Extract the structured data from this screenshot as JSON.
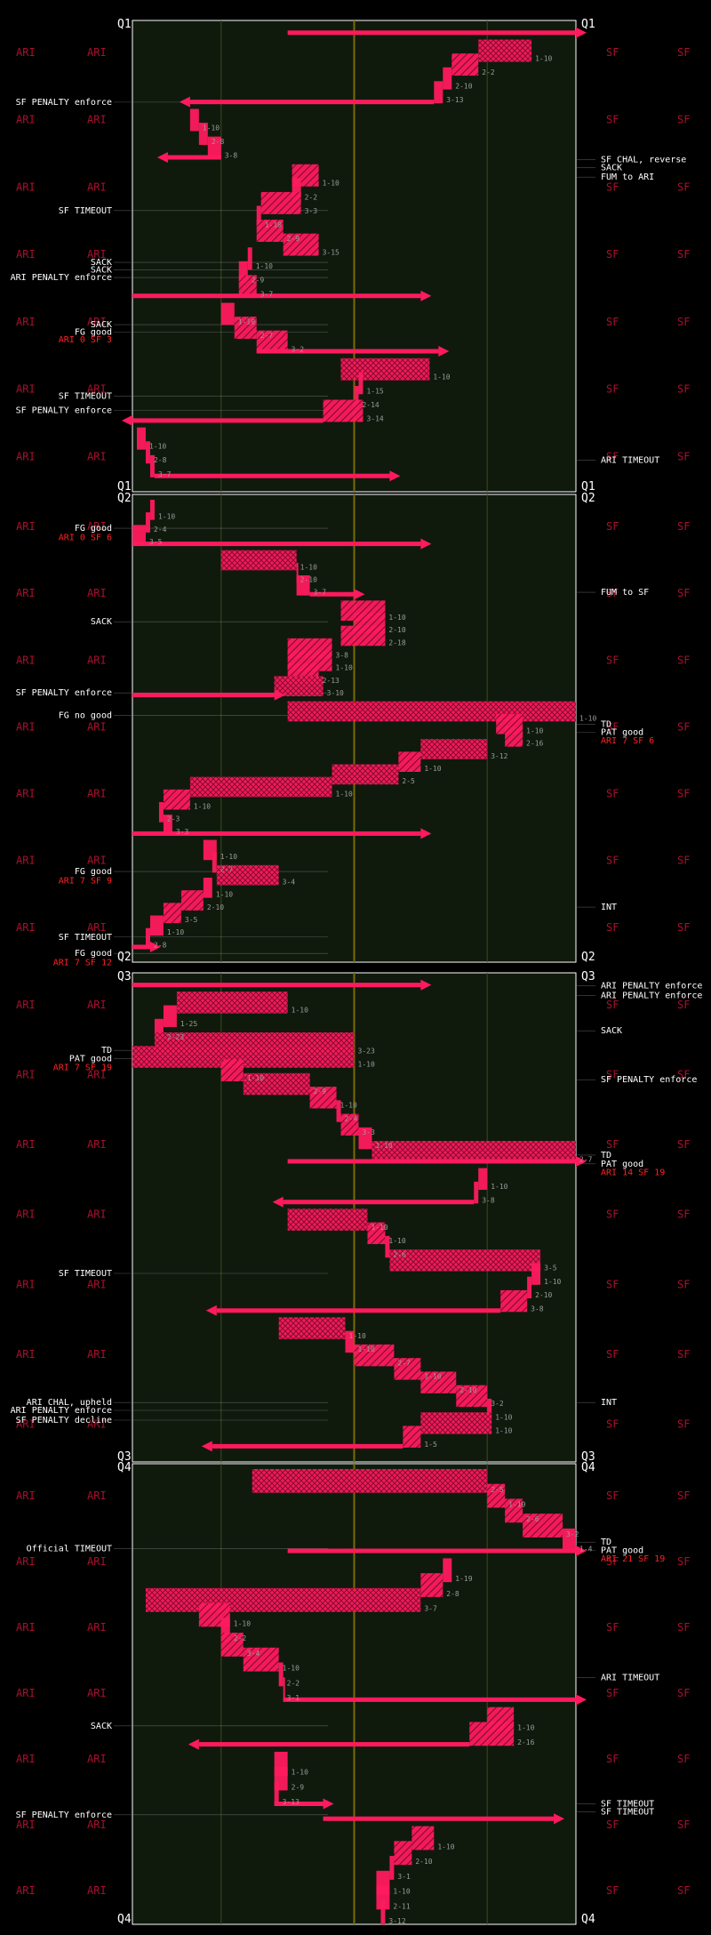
{
  "chart_data": {
    "type": "football drive chart",
    "teams": {
      "left": "ARI",
      "right": "SF"
    },
    "colors": {
      "background": "#000000",
      "field": "#0f1a0d",
      "accent": "#ff1a5e",
      "midfield": "#7a6a00",
      "yardline": "#3f4a1e",
      "text": "#ffffff",
      "score": "#ff2222",
      "team_label": "#a8102e"
    },
    "x_axis": {
      "unit": "yards from ARI goal line",
      "range": [
        0,
        100
      ],
      "gridlines": [
        20,
        50,
        80
      ]
    },
    "quarters": [
      {
        "label": "Q1",
        "plays": [
          {
            "from": 35,
            "to": 100
          },
          {
            "from": 90,
            "to": 78,
            "label": "1-10"
          },
          {
            "from": 78,
            "to": 72,
            "label": "2-2"
          },
          {
            "from": 72,
            "to": 70,
            "label": "2-10"
          },
          {
            "from": 70,
            "to": 68,
            "label": "3-13"
          },
          {
            "from": 68,
            "to": 13
          },
          {
            "from": 13,
            "to": 15,
            "label": "1-10"
          },
          {
            "from": 15,
            "to": 17,
            "label": "2-8"
          },
          {
            "from": 17,
            "to": 20,
            "label": "3-8"
          },
          {
            "from": 20,
            "to": 8
          },
          {
            "from": 36,
            "to": 42,
            "label": "1-10"
          },
          {
            "from": 38,
            "to": 36,
            "label": "2-2"
          },
          {
            "from": 29,
            "to": 38,
            "label": "3-3"
          },
          {
            "from": 29,
            "to": 28,
            "label": "1-10"
          },
          {
            "from": 28,
            "to": 34,
            "label": "2-9"
          },
          {
            "from": 34,
            "to": 42,
            "label": "3-15"
          },
          {
            "from": 27,
            "to": 26,
            "label": "1-10"
          },
          {
            "from": 26,
            "to": 24,
            "label": "2-9"
          },
          {
            "from": 24,
            "to": 28,
            "label": "3-7"
          },
          {
            "from": 0,
            "to": 65
          },
          {
            "from": 20,
            "to": 23,
            "label": "1-10"
          },
          {
            "from": 23,
            "to": 28,
            "label": "2-7"
          },
          {
            "from": 28,
            "to": 35,
            "label": "3-2"
          },
          {
            "from": 28,
            "to": 69
          },
          {
            "from": 47,
            "to": 67,
            "label": "1-10"
          },
          {
            "from": 52,
            "to": 51,
            "label": "1-15"
          },
          {
            "from": 51,
            "to": 50,
            "label": "2-14"
          },
          {
            "from": 43,
            "to": 52,
            "label": "3-14"
          },
          {
            "from": 43,
            "to": 0
          },
          {
            "from": 1,
            "to": 3,
            "label": "1-10"
          },
          {
            "from": 3,
            "to": 4,
            "label": "2-8"
          },
          {
            "from": 4,
            "to": 5,
            "label": "3-7"
          },
          {
            "from": 5,
            "to": 58
          }
        ],
        "events": [
          {
            "text": "SF PENALTY enforce",
            "side": "left",
            "y": 0.179
          },
          {
            "text": "SF TIMEOUT",
            "side": "left",
            "y": 0.409
          },
          {
            "text": "SACK",
            "side": "left",
            "y": 0.519
          },
          {
            "text": "SACK",
            "side": "left",
            "y": 0.535
          },
          {
            "text": "ARI PENALTY enforce",
            "side": "left",
            "y": 0.551
          },
          {
            "text": "SACK",
            "side": "left",
            "y": 0.651
          },
          {
            "text": "FG good",
            "side": "left",
            "y": 0.667
          },
          {
            "text": "ARI 0 SF 3",
            "side": "left",
            "y": 0.683,
            "score": true
          },
          {
            "text": "SF TIMEOUT",
            "side": "left",
            "y": 0.803
          },
          {
            "text": "SF PENALTY enforce",
            "side": "left",
            "y": 0.833
          },
          {
            "text": "SF CHAL, reverse",
            "side": "right",
            "y": 0.301
          },
          {
            "text": "SACK",
            "side": "right",
            "y": 0.318
          },
          {
            "text": "FUM to ARI",
            "side": "right",
            "y": 0.338
          },
          {
            "text": "ARI TIMEOUT",
            "side": "right",
            "y": 0.939
          }
        ]
      },
      {
        "label": "Q2",
        "plays": [
          {
            "from": 5,
            "to": 4,
            "label": "1-10"
          },
          {
            "from": 4,
            "to": 3,
            "label": "2-4"
          },
          {
            "from": 3,
            "to": 0,
            "label": "3-5"
          },
          {
            "from": 0,
            "to": 65
          },
          {
            "from": 20,
            "to": 37,
            "label": "1-10"
          },
          {
            "from": 37,
            "to": 37,
            "label": "2-10"
          },
          {
            "from": 37,
            "to": 40,
            "label": "3-7"
          },
          {
            "from": 40,
            "to": 50
          },
          {
            "from": 47,
            "to": 57,
            "label": "1-10"
          },
          {
            "from": 50,
            "to": 57,
            "label": "2-10"
          },
          {
            "from": 47,
            "to": 57,
            "label": "2-18"
          },
          {
            "from": 35,
            "to": 45,
            "label": "3-8"
          },
          {
            "from": 35,
            "to": 45,
            "label": "1-10"
          },
          {
            "from": 35,
            "to": 42,
            "label": "2-13"
          },
          {
            "from": 32,
            "to": 43,
            "label": "3-10"
          },
          {
            "from": 0,
            "to": 32
          },
          {
            "from": 35,
            "to": 100,
            "label": "1-10"
          },
          {
            "from": 82,
            "to": 88,
            "label": "1-10"
          },
          {
            "from": 84,
            "to": 88,
            "label": "2-16"
          },
          {
            "from": 65,
            "to": 80,
            "label": "3-12"
          },
          {
            "from": 60,
            "to": 65,
            "label": "1-10"
          },
          {
            "from": 45,
            "to": 60,
            "label": "2-5"
          },
          {
            "from": 13,
            "to": 45,
            "label": "1-10"
          },
          {
            "from": 7,
            "to": 13,
            "label": "1-10"
          },
          {
            "from": 6,
            "to": 7,
            "label": "2-3"
          },
          {
            "from": 7,
            "to": 9,
            "label": "3-3"
          },
          {
            "from": 0,
            "to": 65
          },
          {
            "from": 16,
            "to": 19,
            "label": "1-10"
          },
          {
            "from": 18,
            "to": 19,
            "label": "2-7"
          },
          {
            "from": 19,
            "to": 33,
            "label": "3-4"
          },
          {
            "from": 16,
            "to": 18,
            "label": "1-10"
          },
          {
            "from": 11,
            "to": 16,
            "label": "2-10"
          },
          {
            "from": 7,
            "to": 11,
            "label": "3-5"
          },
          {
            "from": 4,
            "to": 7,
            "label": "1-10"
          },
          {
            "from": 3,
            "to": 4,
            "label": "2-8"
          },
          {
            "from": 0,
            "to": 4
          }
        ],
        "events": [
          {
            "text": "FG good",
            "side": "left",
            "y": 0.078
          },
          {
            "text": "ARI 0 SF 6",
            "side": "left",
            "y": 0.098,
            "score": true
          },
          {
            "text": "SACK",
            "side": "left",
            "y": 0.278
          },
          {
            "text": "SF PENALTY enforce",
            "side": "left",
            "y": 0.43
          },
          {
            "text": "FG no good",
            "side": "left",
            "y": 0.478
          },
          {
            "text": "FG good",
            "side": "left",
            "y": 0.812
          },
          {
            "text": "ARI 7 SF 9",
            "side": "left",
            "y": 0.832,
            "score": true
          },
          {
            "text": "SF TIMEOUT",
            "side": "left",
            "y": 0.952
          },
          {
            "text": "FG good",
            "side": "left",
            "y": 0.987
          },
          {
            "text": "ARI 7 SF 12",
            "side": "left",
            "y": 1.007,
            "score": true
          },
          {
            "text": "FUM to SF",
            "side": "right",
            "y": 0.215
          },
          {
            "text": "TD",
            "side": "right",
            "y": 0.497
          },
          {
            "text": "PAT good",
            "side": "right",
            "y": 0.514
          },
          {
            "text": "ARI 7 SF 6",
            "side": "right",
            "y": 0.532,
            "score": true
          },
          {
            "text": "INT",
            "side": "right",
            "y": 0.888
          }
        ]
      },
      {
        "label": "Q3",
        "plays": [
          {
            "from": 0,
            "to": 65
          },
          {
            "from": 10,
            "to": 35,
            "label": "1-10"
          },
          {
            "from": 7,
            "to": 10,
            "label": "1-25"
          },
          {
            "from": 5,
            "to": 7,
            "label": "2-23"
          },
          {
            "from": 5,
            "to": 50,
            "label": "3-23"
          },
          {
            "from": 50,
            "to": 0,
            "label": "1-10"
          },
          {
            "from": 20,
            "to": 25,
            "label": "1-10"
          },
          {
            "from": 25,
            "to": 40,
            "label": "2-9"
          },
          {
            "from": 40,
            "to": 46,
            "label": "1-10"
          },
          {
            "from": 46,
            "to": 47,
            "label": "2-4"
          },
          {
            "from": 47,
            "to": 51,
            "label": "3-3"
          },
          {
            "from": 51,
            "to": 54,
            "label": "1-10"
          },
          {
            "from": 54,
            "to": 100,
            "label": "2-7"
          },
          {
            "from": 35,
            "to": 100
          },
          {
            "from": 80,
            "to": 78,
            "label": "1-10"
          },
          {
            "from": 78,
            "to": 77,
            "label": "3-8"
          },
          {
            "from": 77,
            "to": 34
          },
          {
            "from": 35,
            "to": 53,
            "label": "1-10"
          },
          {
            "from": 53,
            "to": 57,
            "label": "1-10"
          },
          {
            "from": 57,
            "to": 58,
            "label": "2-6"
          },
          {
            "from": 58,
            "to": 92,
            "label": "3-5"
          },
          {
            "from": 92,
            "to": 90,
            "label": "1-10"
          },
          {
            "from": 90,
            "to": 89,
            "label": "2-10"
          },
          {
            "from": 89,
            "to": 83,
            "label": "3-8"
          },
          {
            "from": 83,
            "to": 19
          },
          {
            "from": 33,
            "to": 48,
            "label": "1-10"
          },
          {
            "from": 48,
            "to": 50,
            "label": "1-10"
          },
          {
            "from": 50,
            "to": 59,
            "label": "2-7"
          },
          {
            "from": 59,
            "to": 65,
            "label": "1-10"
          },
          {
            "from": 65,
            "to": 73,
            "label": "2-10"
          },
          {
            "from": 73,
            "to": 80,
            "label": "3-2"
          },
          {
            "from": 80,
            "to": 81,
            "label": "1-10"
          },
          {
            "from": 81,
            "to": 65,
            "label": "1-10"
          },
          {
            "from": 65,
            "to": 61,
            "label": "1-5"
          },
          {
            "from": 61,
            "to": 18
          }
        ],
        "events": [
          {
            "text": "TD",
            "side": "left",
            "y": 0.164
          },
          {
            "text": "PAT good",
            "side": "left",
            "y": 0.181
          },
          {
            "text": "ARI 7 SF 19",
            "side": "left",
            "y": 0.199,
            "score": true
          },
          {
            "text": "SF TIMEOUT",
            "side": "left",
            "y": 0.62
          },
          {
            "text": "ARI CHAL, upheld",
            "side": "left",
            "y": 0.884
          },
          {
            "text": "ARI PENALTY enforce",
            "side": "left",
            "y": 0.9
          },
          {
            "text": "SF PENALTY decline",
            "side": "left",
            "y": 0.92
          },
          {
            "text": "ARI PENALTY enforce",
            "side": "right",
            "y": 0.032
          },
          {
            "text": "ARI PENALTY enforce",
            "side": "right",
            "y": 0.052
          },
          {
            "text": "SACK",
            "side": "right",
            "y": 0.124
          },
          {
            "text": "SF PENALTY enforce",
            "side": "right",
            "y": 0.224
          },
          {
            "text": "TD",
            "side": "right",
            "y": 0.378
          },
          {
            "text": "PAT good",
            "side": "right",
            "y": 0.396
          },
          {
            "text": "ARI 14 SF 19",
            "side": "right",
            "y": 0.414,
            "score": true
          },
          {
            "text": "INT",
            "side": "right",
            "y": 0.884
          }
        ]
      },
      {
        "label": "Q4",
        "plays": [
          {
            "from": 27,
            "to": 80,
            "label": "2-5"
          },
          {
            "from": 80,
            "to": 84,
            "label": "1-10"
          },
          {
            "from": 84,
            "to": 88,
            "label": "2-6"
          },
          {
            "from": 88,
            "to": 97,
            "label": "3-2"
          },
          {
            "from": 97,
            "to": 100,
            "label": "1-4"
          },
          {
            "from": 35,
            "to": 100
          },
          {
            "from": 72,
            "to": 70,
            "label": "1-19"
          },
          {
            "from": 70,
            "to": 65,
            "label": "2-8"
          },
          {
            "from": 65,
            "to": 3,
            "label": "3-7"
          },
          {
            "from": 15,
            "to": 22,
            "label": "1-10"
          },
          {
            "from": 20,
            "to": 22,
            "label": "2-2"
          },
          {
            "from": 20,
            "to": 25,
            "label": "3-4"
          },
          {
            "from": 25,
            "to": 33,
            "label": "1-10"
          },
          {
            "from": 33,
            "to": 34,
            "label": "2-2"
          },
          {
            "from": 34,
            "to": 34,
            "label": "3-1"
          },
          {
            "from": 34,
            "to": 100
          },
          {
            "from": 80,
            "to": 86,
            "label": "1-10"
          },
          {
            "from": 76,
            "to": 86,
            "label": "2-16"
          },
          {
            "from": 76,
            "to": 15
          },
          {
            "from": 32,
            "to": 35,
            "label": "1-10"
          },
          {
            "from": 35,
            "to": 32,
            "label": "2-9"
          },
          {
            "from": 32,
            "to": 33,
            "label": "3-13"
          },
          {
            "from": 32,
            "to": 43
          },
          {
            "from": 43,
            "to": 95
          },
          {
            "from": 63,
            "to": 68,
            "label": "1-10"
          },
          {
            "from": 59,
            "to": 63,
            "label": "2-10"
          },
          {
            "from": 58,
            "to": 59,
            "label": "3-1"
          },
          {
            "from": 58,
            "to": 55,
            "label": "1-10"
          },
          {
            "from": 55,
            "to": 58,
            "label": "2-11"
          },
          {
            "from": 56,
            "to": 57,
            "label": "3-12"
          }
        ],
        "events": [
          {
            "text": "Official TIMEOUT",
            "side": "left",
            "y": 0.19
          },
          {
            "text": "SACK",
            "side": "left",
            "y": 0.575
          },
          {
            "text": "SF PENALTY enforce",
            "side": "left",
            "y": 0.768
          },
          {
            "text": "TD",
            "side": "right",
            "y": 0.176
          },
          {
            "text": "PAT good",
            "side": "right",
            "y": 0.194
          },
          {
            "text": "ARI 21 SF 19",
            "side": "right",
            "y": 0.212,
            "score": true
          },
          {
            "text": "ARI TIMEOUT",
            "side": "right",
            "y": 0.47
          },
          {
            "text": "SF TIMEOUT",
            "side": "right",
            "y": 0.744
          },
          {
            "text": "SF TIMEOUT",
            "side": "right",
            "y": 0.762
          }
        ]
      }
    ]
  }
}
